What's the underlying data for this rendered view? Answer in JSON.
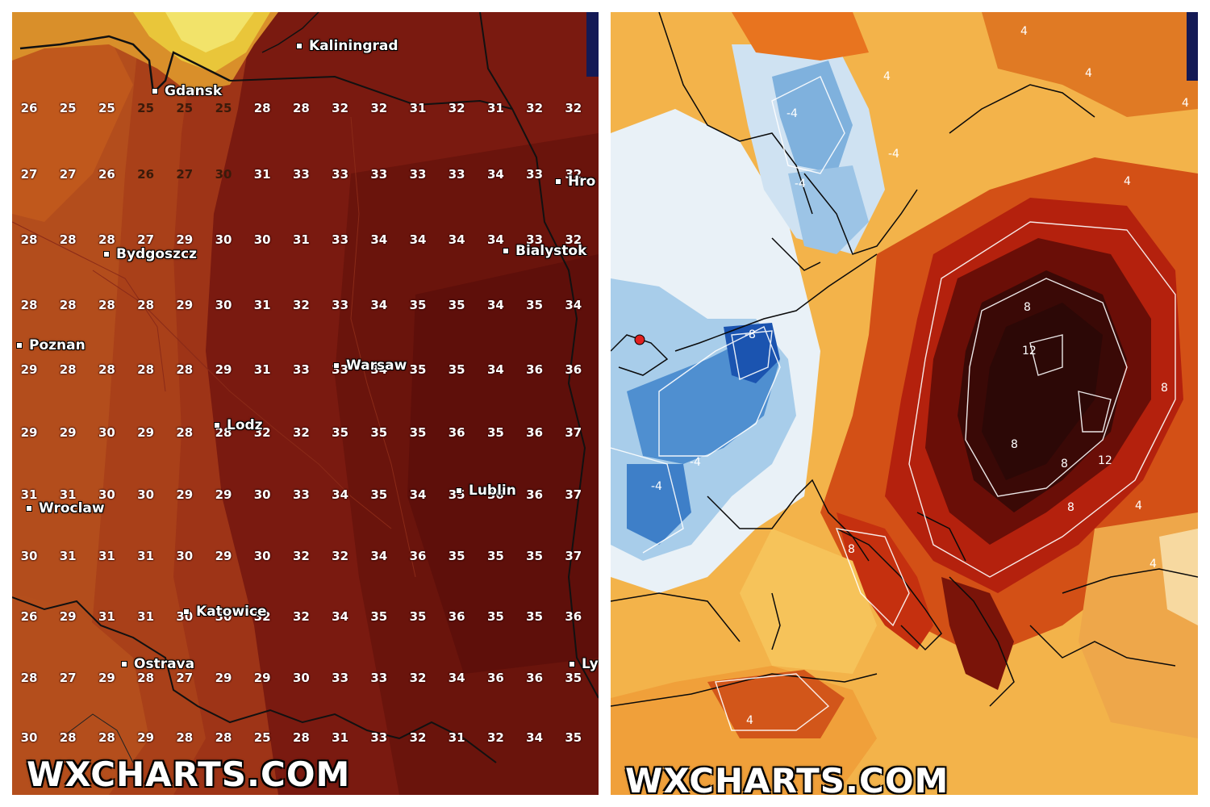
{
  "colors": {
    "left_base": "#7a1a10",
    "left_hot": "#5e0f0a",
    "left_warm": "#9e3417",
    "left_mild": "#c0581c",
    "left_cool": "#e9c63a",
    "right_base": "#f3b34a",
    "right_cold": "#1b54b0",
    "right_cool": "#a8cdea",
    "right_hot": "#b4210d",
    "right_extreme": "#2c0806"
  },
  "left_map": {
    "watermark": "WXCHARTS.COM",
    "cities": [
      {
        "name": "Kaliningrad"
      },
      {
        "name": "Gdansk"
      },
      {
        "name": "Hro"
      },
      {
        "name": "Bydgoszcz"
      },
      {
        "name": "Bialystok"
      },
      {
        "name": "Poznan"
      },
      {
        "name": "Warsaw"
      },
      {
        "name": "Lodz"
      },
      {
        "name": "Lublin"
      },
      {
        "name": "Wroclaw"
      },
      {
        "name": "Katowice"
      },
      {
        "name": "Ostrava"
      },
      {
        "name": "Ly"
      }
    ],
    "temperature_rows": [
      [
        "26",
        "25",
        "25",
        "25",
        "25",
        "25",
        "28",
        "28",
        "32",
        "32",
        "31",
        "32",
        "31",
        "32",
        "32"
      ],
      [
        "27",
        "27",
        "26",
        "26",
        "27",
        "30",
        "31",
        "33",
        "33",
        "33",
        "33",
        "33",
        "34",
        "33",
        "32"
      ],
      [
        "28",
        "28",
        "28",
        "27",
        "29",
        "30",
        "30",
        "31",
        "33",
        "34",
        "34",
        "34",
        "34",
        "33",
        "32"
      ],
      [
        "28",
        "28",
        "28",
        "28",
        "29",
        "30",
        "31",
        "32",
        "33",
        "34",
        "35",
        "35",
        "34",
        "35",
        "34"
      ],
      [
        "29",
        "28",
        "28",
        "28",
        "28",
        "29",
        "31",
        "33",
        "33",
        "34",
        "35",
        "35",
        "34",
        "36",
        "36"
      ],
      [
        "29",
        "29",
        "30",
        "29",
        "28",
        "28",
        "32",
        "32",
        "35",
        "35",
        "35",
        "36",
        "35",
        "36",
        "37"
      ],
      [
        "31",
        "31",
        "30",
        "30",
        "29",
        "29",
        "30",
        "33",
        "34",
        "35",
        "34",
        "35",
        "36",
        "36",
        "37"
      ],
      [
        "30",
        "31",
        "31",
        "31",
        "30",
        "29",
        "30",
        "32",
        "32",
        "34",
        "36",
        "35",
        "35",
        "35",
        "37"
      ],
      [
        "26",
        "29",
        "31",
        "31",
        "30",
        "30",
        "32",
        "32",
        "34",
        "35",
        "35",
        "36",
        "35",
        "35",
        "36"
      ],
      [
        "28",
        "27",
        "29",
        "28",
        "27",
        "29",
        "29",
        "30",
        "33",
        "33",
        "32",
        "34",
        "36",
        "36",
        "35"
      ],
      [
        "30",
        "28",
        "28",
        "29",
        "28",
        "28",
        "25",
        "28",
        "31",
        "33",
        "32",
        "31",
        "32",
        "34",
        "35"
      ]
    ]
  },
  "right_map": {
    "watermark": "WXCHARTS.COM",
    "contour_labels": [
      "-4",
      "-4",
      "-4",
      "-8",
      "-4",
      "-4",
      "4",
      "4",
      "4",
      "8",
      "8",
      "12",
      "12",
      "8",
      "8",
      "8",
      "4",
      "4",
      "4",
      "8",
      "4",
      "4"
    ]
  }
}
